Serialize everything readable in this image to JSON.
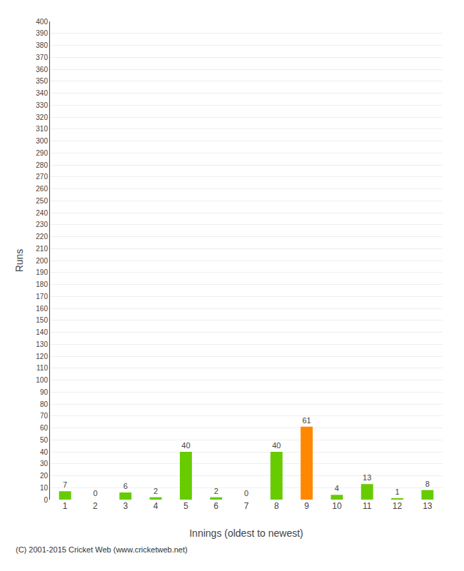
{
  "chart_data": {
    "type": "bar",
    "xlabel": "Innings (oldest to newest)",
    "ylabel": "Runs",
    "categories": [
      1,
      2,
      3,
      4,
      5,
      6,
      7,
      8,
      9,
      10,
      11,
      12,
      13
    ],
    "values": [
      7,
      0,
      6,
      2,
      40,
      2,
      0,
      40,
      61,
      4,
      13,
      1,
      8
    ],
    "colors": [
      "#66cc00",
      "#66cc00",
      "#66cc00",
      "#66cc00",
      "#66cc00",
      "#66cc00",
      "#66cc00",
      "#66cc00",
      "#ff8800",
      "#66cc00",
      "#66cc00",
      "#66cc00",
      "#66cc00"
    ],
    "ylim": [
      0,
      400
    ],
    "yticks": [
      0,
      10,
      20,
      30,
      40,
      50,
      60,
      70,
      80,
      90,
      100,
      110,
      120,
      130,
      140,
      150,
      160,
      170,
      180,
      190,
      200,
      210,
      220,
      230,
      240,
      250,
      260,
      270,
      280,
      290,
      300,
      310,
      320,
      330,
      340,
      350,
      360,
      370,
      380,
      390,
      400
    ],
    "grid": true,
    "data_labels": true,
    "annotations": [
      "(C) 2001-2015 Cricket Web (www.cricketweb.net)"
    ]
  }
}
